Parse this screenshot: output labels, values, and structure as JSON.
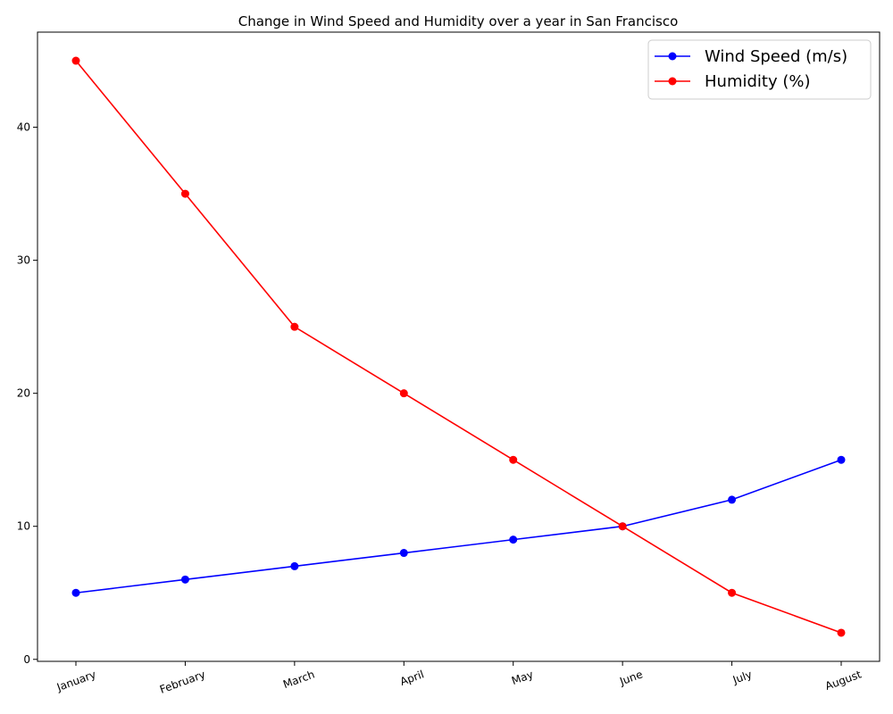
{
  "chart_data": {
    "type": "line",
    "title": "Change in Wind Speed and Humidity over a year in San Francisco",
    "xlabel": "",
    "ylabel": "",
    "categories": [
      "January",
      "February",
      "March",
      "April",
      "May",
      "June",
      "July",
      "August"
    ],
    "series": [
      {
        "name": "Wind Speed (m/s)",
        "color": "#0000ff",
        "values": [
          5,
          6,
          7,
          8,
          9,
          10,
          12,
          15
        ]
      },
      {
        "name": "Humidity (%)",
        "color": "#ff0000",
        "values": [
          45,
          35,
          25,
          20,
          15,
          10,
          5,
          2
        ]
      }
    ],
    "ylim": [
      -0.15,
      47.15
    ],
    "yticks": [
      0,
      10,
      20,
      30,
      40
    ],
    "grid": false,
    "legend": "top-right"
  }
}
